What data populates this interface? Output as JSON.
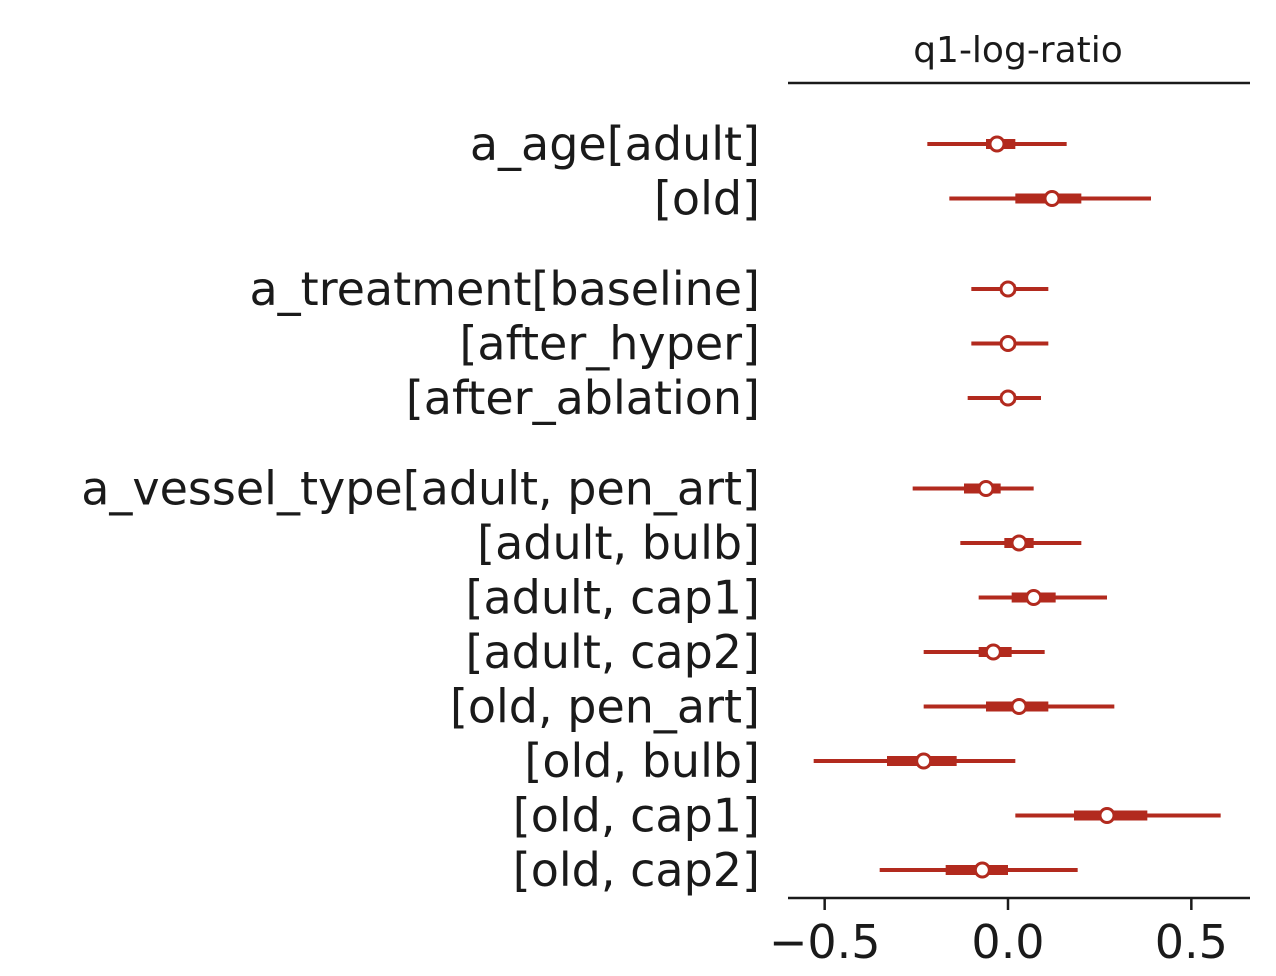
{
  "colors": {
    "accent": "#b22a1e",
    "text": "#1a1a1a",
    "axis": "#1a1a1a",
    "marker_fill": "#ffffff"
  },
  "chart_data": {
    "type": "forest",
    "title": "q1-log-ratio",
    "xlabel": "",
    "ylabel": "",
    "xlim": [
      -0.6,
      0.66
    ],
    "xticks": [
      -0.5,
      0.0,
      0.5
    ],
    "xtick_labels": [
      "−0.5",
      "0.0",
      "0.5"
    ],
    "grid": false,
    "rows": [
      {
        "label": "a_age[adult]",
        "group": 0,
        "median": -0.03,
        "hdi_50": [
          -0.06,
          0.02
        ],
        "hdi_94": [
          -0.22,
          0.16
        ]
      },
      {
        "label": "[old]",
        "group": 0,
        "median": 0.12,
        "hdi_50": [
          0.02,
          0.2
        ],
        "hdi_94": [
          -0.16,
          0.39
        ]
      },
      {
        "label": "a_treatment[baseline]",
        "group": 1,
        "median": 0.0,
        "hdi_50": [
          -0.02,
          0.02
        ],
        "hdi_94": [
          -0.1,
          0.11
        ]
      },
      {
        "label": "[after_hyper]",
        "group": 1,
        "median": -0.0,
        "hdi_50": [
          -0.02,
          0.02
        ],
        "hdi_94": [
          -0.1,
          0.11
        ]
      },
      {
        "label": "[after_ablation]",
        "group": 1,
        "median": 0.0,
        "hdi_50": [
          -0.02,
          0.02
        ],
        "hdi_94": [
          -0.11,
          0.09
        ]
      },
      {
        "label": "a_vessel_type[adult, pen_art]",
        "group": 2,
        "median": -0.06,
        "hdi_50": [
          -0.12,
          -0.02
        ],
        "hdi_94": [
          -0.26,
          0.07
        ]
      },
      {
        "label": "[adult, bulb]",
        "group": 2,
        "median": 0.03,
        "hdi_50": [
          -0.01,
          0.07
        ],
        "hdi_94": [
          -0.13,
          0.2
        ]
      },
      {
        "label": "[adult, cap1]",
        "group": 2,
        "median": 0.07,
        "hdi_50": [
          0.01,
          0.13
        ],
        "hdi_94": [
          -0.08,
          0.27
        ]
      },
      {
        "label": "[adult, cap2]",
        "group": 2,
        "median": -0.04,
        "hdi_50": [
          -0.08,
          0.01
        ],
        "hdi_94": [
          -0.23,
          0.1
        ]
      },
      {
        "label": "[old, pen_art]",
        "group": 2,
        "median": 0.03,
        "hdi_50": [
          -0.06,
          0.11
        ],
        "hdi_94": [
          -0.23,
          0.29
        ]
      },
      {
        "label": "[old, bulb]",
        "group": 2,
        "median": -0.23,
        "hdi_50": [
          -0.33,
          -0.14
        ],
        "hdi_94": [
          -0.53,
          0.02
        ]
      },
      {
        "label": "[old, cap1]",
        "group": 2,
        "median": 0.27,
        "hdi_50": [
          0.18,
          0.38
        ],
        "hdi_94": [
          0.02,
          0.58
        ]
      },
      {
        "label": "[old, cap2]",
        "group": 2,
        "median": -0.07,
        "hdi_50": [
          -0.17,
          0.0
        ],
        "hdi_94": [
          -0.35,
          0.19
        ]
      }
    ]
  }
}
